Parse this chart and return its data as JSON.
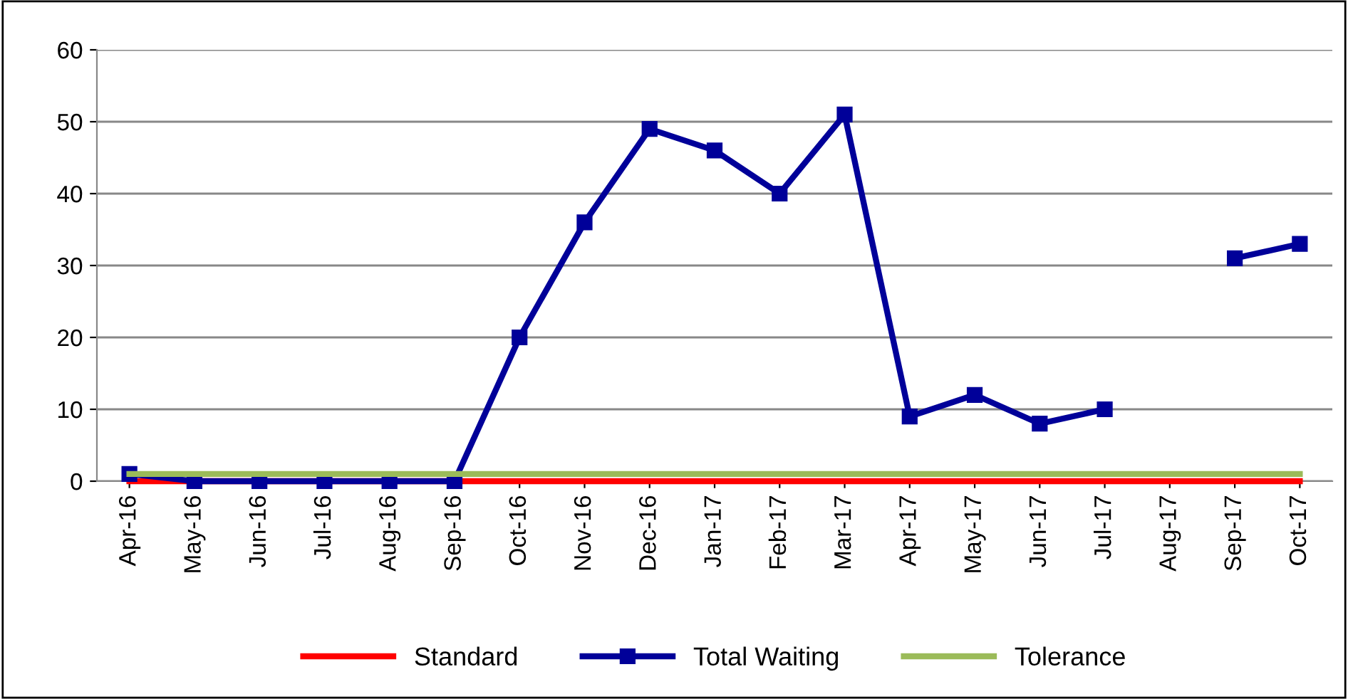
{
  "chart_data": {
    "type": "line",
    "categories": [
      "Apr-16",
      "May-16",
      "Jun-16",
      "Jul-16",
      "Aug-16",
      "Sep-16",
      "Oct-16",
      "Nov-16",
      "Dec-16",
      "Jan-17",
      "Feb-17",
      "Mar-17",
      "Apr-17",
      "May-17",
      "Jun-17",
      "Jul-17",
      "Aug-17",
      "Sep-17",
      "Oct-17"
    ],
    "series": [
      {
        "name": "Standard",
        "color": "#ff0000",
        "marker": "none",
        "values": [
          0,
          0,
          0,
          0,
          0,
          0,
          0,
          0,
          0,
          0,
          0,
          0,
          0,
          0,
          0,
          0,
          0,
          0,
          0
        ]
      },
      {
        "name": "Total Waiting",
        "color": "#000099",
        "marker": "square",
        "values": [
          1,
          0,
          0,
          0,
          0,
          0,
          20,
          36,
          49,
          46,
          40,
          51,
          9,
          12,
          8,
          10,
          null,
          31,
          33
        ]
      },
      {
        "name": "Tolerance",
        "color": "#9bbb59",
        "marker": "none",
        "values": [
          1,
          1,
          1,
          1,
          1,
          1,
          1,
          1,
          1,
          1,
          1,
          1,
          1,
          1,
          1,
          1,
          1,
          1,
          1
        ]
      }
    ],
    "ylim": [
      0,
      60
    ],
    "yticks": [
      0,
      10,
      20,
      30,
      40,
      50,
      60
    ],
    "grid": "y",
    "legend": "bottom",
    "line_style": "solid"
  }
}
